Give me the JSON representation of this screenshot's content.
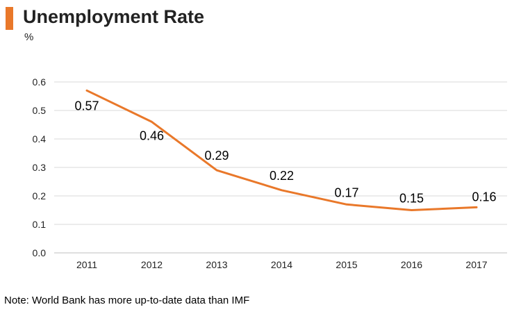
{
  "title": "Unemployment Rate",
  "unit_label": "%",
  "note": "Note: World Bank has more up-to-date data than IMF",
  "colors": {
    "accent": "#e9782a",
    "line": "#e9782a",
    "grid": "#d9d9d9",
    "axis": "#bfbfbf"
  },
  "chart_data": {
    "type": "line",
    "title": "Unemployment Rate",
    "xlabel": "",
    "ylabel": "%",
    "categories": [
      "2011",
      "2012",
      "2013",
      "2014",
      "2015",
      "2016",
      "2017"
    ],
    "series": [
      {
        "name": "Unemployment Rate",
        "values": [
          0.57,
          0.46,
          0.29,
          0.22,
          0.17,
          0.15,
          0.16
        ],
        "labels": [
          "0.57",
          "0.46",
          "0.29",
          "0.22",
          "0.17",
          "0.15",
          "0.16"
        ]
      }
    ],
    "ylim": [
      0.0,
      0.6
    ],
    "yticks": [
      "0.0",
      "0.1",
      "0.2",
      "0.3",
      "0.4",
      "0.5",
      "0.6"
    ],
    "grid": true,
    "legend": "none"
  }
}
